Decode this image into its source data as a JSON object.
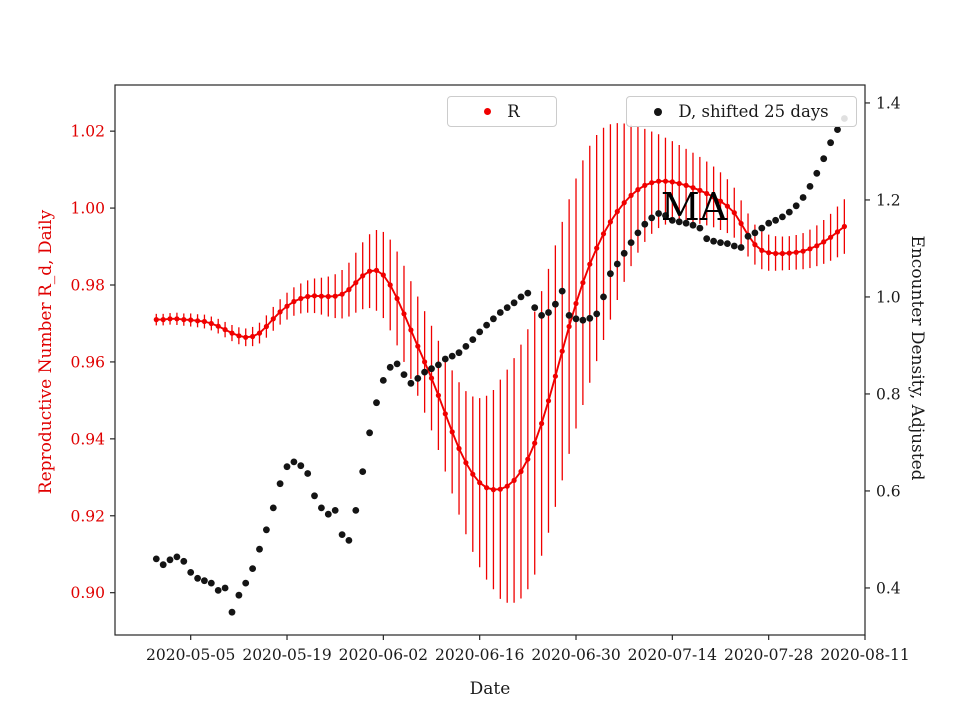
{
  "figure": {
    "background": "#ffffff",
    "spine_color": "#262626",
    "tick_text_color": "#1a1a1a"
  },
  "annotation": {
    "text": "MA"
  },
  "legend": [
    {
      "label": "R",
      "marker_color": "#f00000"
    },
    {
      "label": "D, shifted 25 days",
      "marker_color": "#141414"
    }
  ],
  "chart_data": {
    "type": "scatter",
    "title": "",
    "xlabel": "Date",
    "ylabel_left": "Reproductive Number R_d, Daily",
    "ylabel_right": "Encounter Density, Adjusted",
    "grid": false,
    "legend_position": "top-inside",
    "x_axis": {
      "day0_date": "2020-04-24",
      "domain_days": [
        0,
        109
      ],
      "tick_days": [
        11,
        25,
        39,
        53,
        67,
        81,
        95,
        109
      ],
      "tick_labels": [
        "2020-05-05",
        "2020-05-19",
        "2020-06-02",
        "2020-06-16",
        "2020-06-30",
        "2020-07-14",
        "2020-07-28",
        "2020-08-11"
      ]
    },
    "y_left": {
      "label": "Reproductive Number R_d, Daily",
      "color": "#e00000",
      "lim": [
        0.889,
        1.032
      ],
      "ticks": [
        0.9,
        0.92,
        0.94,
        0.96,
        0.98,
        1.0,
        1.02
      ]
    },
    "y_right": {
      "label": "Encounter Density, Adjusted",
      "color": "#1a1a1a",
      "lim": [
        0.303,
        1.437
      ],
      "ticks": [
        0.4,
        0.6,
        0.8,
        1.0,
        1.2,
        1.4
      ]
    },
    "series": [
      {
        "name": "R",
        "axis": "left",
        "color": "#f00000",
        "line": true,
        "marker_radius": 2.6,
        "start_day": 6,
        "step_days": 1,
        "values": [
          0.971,
          0.971,
          0.9712,
          0.9712,
          0.971,
          0.9709,
          0.9707,
          0.9705,
          0.97,
          0.9693,
          0.9684,
          0.9675,
          0.9668,
          0.9664,
          0.9666,
          0.9675,
          0.9692,
          0.9712,
          0.973,
          0.9745,
          0.9757,
          0.9765,
          0.977,
          0.9772,
          0.9771,
          0.977,
          0.9771,
          0.9776,
          0.9788,
          0.9806,
          0.9824,
          0.9836,
          0.9838,
          0.9826,
          0.98,
          0.9765,
          0.9725,
          0.9683,
          0.9641,
          0.96,
          0.9558,
          0.9513,
          0.9465,
          0.9418,
          0.9375,
          0.9338,
          0.9308,
          0.9286,
          0.9273,
          0.9268,
          0.9269,
          0.9277,
          0.9292,
          0.9315,
          0.9347,
          0.9389,
          0.944,
          0.9499,
          0.9563,
          0.9628,
          0.9692,
          0.9752,
          0.9806,
          0.9854,
          0.9896,
          0.9933,
          0.9964,
          0.9991,
          1.0014,
          1.0033,
          1.0048,
          1.0059,
          1.0066,
          1.007,
          1.007,
          1.0068,
          1.0064,
          1.0059,
          1.0053,
          1.0046,
          1.0038,
          1.0029,
          1.0018,
          1.0005,
          0.9988,
          0.996,
          0.993,
          0.9905,
          0.989,
          0.9884,
          0.9882,
          0.9882,
          0.9883,
          0.9885,
          0.9888,
          0.9894,
          0.9902,
          0.9912,
          0.9924,
          0.9938,
          0.9952
        ],
        "errors": [
          0.0015,
          0.0015,
          0.0015,
          0.0016,
          0.0016,
          0.0017,
          0.0017,
          0.0018,
          0.0018,
          0.0019,
          0.002,
          0.0021,
          0.0022,
          0.0023,
          0.0025,
          0.0027,
          0.0029,
          0.0031,
          0.0033,
          0.0035,
          0.0037,
          0.0039,
          0.0042,
          0.0045,
          0.0048,
          0.0052,
          0.0057,
          0.0063,
          0.007,
          0.0078,
          0.0087,
          0.0096,
          0.0105,
          0.0112,
          0.0118,
          0.0122,
          0.0125,
          0.0127,
          0.0129,
          0.0132,
          0.0136,
          0.0142,
          0.015,
          0.016,
          0.0172,
          0.0186,
          0.0202,
          0.022,
          0.0239,
          0.0259,
          0.0285,
          0.0303,
          0.0318,
          0.033,
          0.0338,
          0.0342,
          0.0344,
          0.0343,
          0.034,
          0.0336,
          0.0331,
          0.0325,
          0.0318,
          0.0308,
          0.0294,
          0.0276,
          0.0254,
          0.023,
          0.0206,
          0.0184,
          0.0164,
          0.0147,
          0.0133,
          0.0122,
          0.0113,
          0.0106,
          0.01,
          0.0095,
          0.0091,
          0.0087,
          0.0083,
          0.0079,
          0.0075,
          0.007,
          0.0065,
          0.006,
          0.0056,
          0.0052,
          0.0049,
          0.0047,
          0.0045,
          0.0044,
          0.0044,
          0.0045,
          0.0047,
          0.005,
          0.0053,
          0.0057,
          0.0061,
          0.0066,
          0.0071
        ]
      },
      {
        "name": "D, shifted 25 days",
        "axis": "right",
        "color": "#141414",
        "line": false,
        "marker_radius": 3.4,
        "start_day": 6,
        "step_days": 1,
        "values": [
          0.46,
          0.448,
          0.458,
          0.464,
          0.455,
          0.432,
          0.42,
          0.415,
          0.41,
          0.395,
          0.4,
          0.35,
          0.385,
          0.41,
          0.44,
          0.48,
          0.52,
          0.565,
          0.615,
          0.65,
          0.66,
          0.652,
          0.636,
          0.59,
          0.565,
          0.552,
          0.56,
          0.51,
          0.498,
          0.56,
          0.64,
          0.72,
          0.782,
          0.828,
          0.855,
          0.862,
          0.84,
          0.822,
          0.832,
          0.845,
          0.852,
          0.86,
          0.872,
          0.878,
          0.885,
          0.898,
          0.912,
          0.928,
          0.942,
          0.955,
          0.968,
          0.978,
          0.988,
          1.0,
          1.008,
          0.978,
          0.962,
          0.968,
          0.985,
          1.012,
          0.962,
          0.955,
          0.952,
          0.956,
          0.965,
          1.0,
          1.048,
          1.068,
          1.09,
          1.112,
          1.132,
          1.15,
          1.163,
          1.172,
          1.168,
          1.158,
          1.155,
          1.152,
          1.148,
          1.142,
          1.12,
          1.115,
          1.112,
          1.11,
          1.105,
          1.102,
          1.125,
          1.132,
          1.142,
          1.152,
          1.158,
          1.165,
          1.175,
          1.188,
          1.205,
          1.228,
          1.255,
          1.285,
          1.318,
          1.345,
          1.368
        ]
      }
    ],
    "annotations": [
      {
        "text": "MA",
        "approx_date": "2020-07-14",
        "approx_y_left": 1.001
      }
    ]
  }
}
